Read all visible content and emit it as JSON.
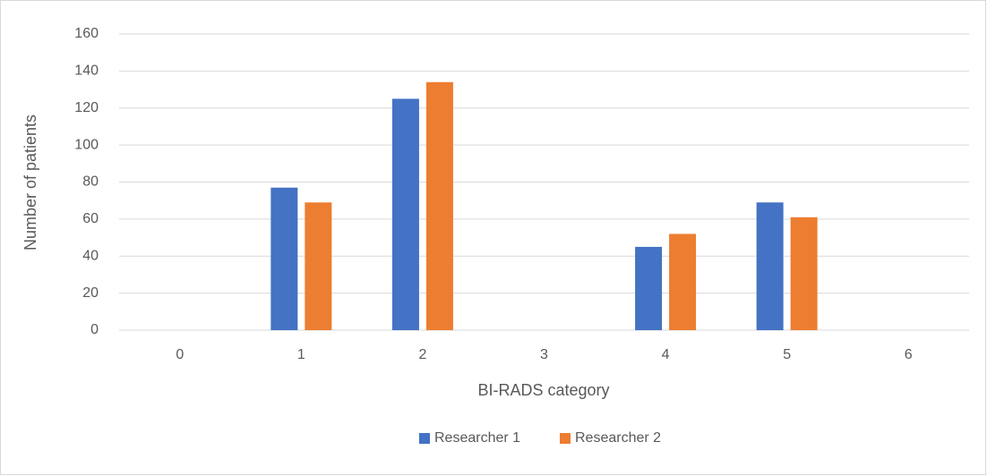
{
  "chart_data": {
    "type": "bar",
    "categories": [
      "0",
      "1",
      "2",
      "3",
      "4",
      "5",
      "6"
    ],
    "series": [
      {
        "name": "Researcher 1",
        "color": "#4472c4",
        "values": [
          0,
          77,
          125,
          0,
          45,
          69,
          0
        ]
      },
      {
        "name": "Researcher 2",
        "color": "#ed7d31",
        "values": [
          0,
          69,
          134,
          0,
          52,
          61,
          0
        ]
      }
    ],
    "x_label": "BI-RADS category",
    "y_label": "Number of patients",
    "ylim": [
      0,
      160
    ],
    "yticks": [
      0,
      20,
      40,
      60,
      80,
      100,
      120,
      140,
      160
    ],
    "grid": true,
    "legend": "bottom"
  }
}
